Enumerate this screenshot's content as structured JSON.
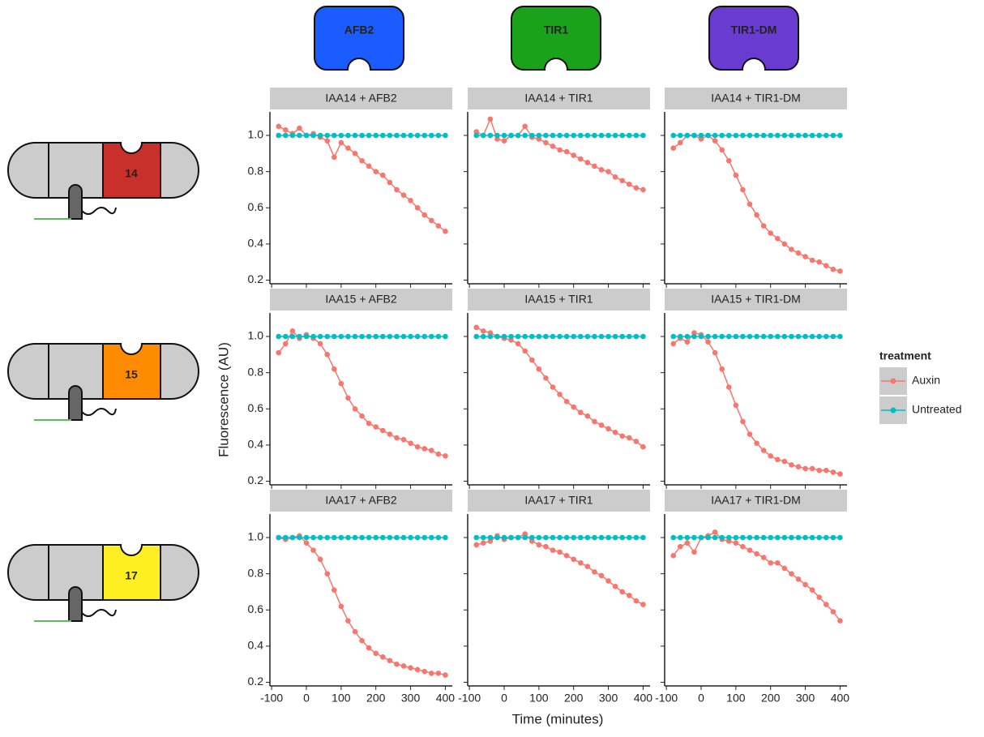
{
  "chart_data": {
    "type": "scatter",
    "xlabel": "Time (minutes)",
    "ylabel": "Fluorescence (AU)",
    "legend_title": "treatment",
    "legend": "right",
    "x": [
      -80,
      -60,
      -40,
      -20,
      0,
      20,
      40,
      60,
      80,
      100,
      120,
      140,
      160,
      180,
      200,
      220,
      240,
      260,
      280,
      300,
      320,
      340,
      360,
      380,
      400
    ],
    "xlim": [
      -105,
      420
    ],
    "xticks": [
      -100,
      0,
      100,
      200,
      300,
      400
    ],
    "ylim": [
      0.18,
      1.13
    ],
    "yticks": [
      0.2,
      0.4,
      0.6,
      0.8,
      {
        "value": 1,
        "label": "1.0"
      }
    ],
    "series": [
      {
        "name": "Auxin",
        "color": "#f8766d"
      },
      {
        "name": "Untreated",
        "color": "#00bfc4"
      }
    ],
    "panels": [
      {
        "title": "IAA14 + AFB2",
        "series": [
          {
            "values": [
              1.05,
              1.03,
              1.01,
              1.04,
              1.0,
              1.01,
              0.99,
              0.97,
              0.88,
              0.96,
              0.93,
              0.9,
              0.86,
              0.83,
              0.8,
              0.78,
              0.74,
              0.7,
              0.67,
              0.64,
              0.6,
              0.56,
              0.53,
              0.5,
              0.47
            ]
          },
          {
            "values": [
              1,
              1,
              1,
              1,
              1,
              1,
              1,
              1,
              1,
              1,
              1,
              1,
              1,
              1,
              1,
              1,
              1,
              1,
              1,
              1,
              1,
              1,
              1,
              1,
              1
            ]
          }
        ]
      },
      {
        "title": "IAA14 + TIR1",
        "series": [
          {
            "values": [
              1.02,
              1.0,
              1.09,
              0.98,
              0.97,
              1.0,
              1.0,
              1.05,
              0.99,
              0.98,
              0.96,
              0.94,
              0.92,
              0.91,
              0.89,
              0.87,
              0.85,
              0.83,
              0.81,
              0.8,
              0.77,
              0.75,
              0.73,
              0.71,
              0.7
            ]
          },
          {
            "values": [
              1,
              1,
              1,
              1,
              1,
              1,
              1,
              1,
              1,
              1,
              1,
              1,
              1,
              1,
              1,
              1,
              1,
              1,
              1,
              1,
              1,
              1,
              1,
              1,
              1
            ]
          }
        ]
      },
      {
        "title": "IAA14 + TIR1-DM",
        "series": [
          {
            "values": [
              0.93,
              0.96,
              1.0,
              1.0,
              0.98,
              1.0,
              0.97,
              0.92,
              0.86,
              0.78,
              0.7,
              0.62,
              0.56,
              0.5,
              0.46,
              0.43,
              0.4,
              0.37,
              0.35,
              0.33,
              0.31,
              0.3,
              0.28,
              0.26,
              0.25
            ]
          },
          {
            "values": [
              1,
              1,
              1,
              1,
              1,
              1,
              1,
              1,
              1,
              1,
              1,
              1,
              1,
              1,
              1,
              1,
              1,
              1,
              1,
              1,
              1,
              1,
              1,
              1,
              1
            ]
          }
        ]
      },
      {
        "title": "IAA15 + AFB2",
        "series": [
          {
            "values": [
              0.91,
              0.96,
              1.03,
              0.99,
              1.01,
              0.99,
              0.96,
              0.9,
              0.82,
              0.74,
              0.66,
              0.6,
              0.56,
              0.52,
              0.5,
              0.48,
              0.46,
              0.44,
              0.43,
              0.41,
              0.39,
              0.38,
              0.37,
              0.35,
              0.34
            ]
          },
          {
            "values": [
              1,
              1,
              1,
              1,
              1,
              1,
              1,
              1,
              1,
              1,
              1,
              1,
              1,
              1,
              1,
              1,
              1,
              1,
              1,
              1,
              1,
              1,
              1,
              1,
              1
            ]
          }
        ]
      },
      {
        "title": "IAA15 + TIR1",
        "series": [
          {
            "values": [
              1.05,
              1.03,
              1.02,
              1.0,
              0.99,
              0.98,
              0.96,
              0.92,
              0.87,
              0.82,
              0.77,
              0.72,
              0.68,
              0.64,
              0.61,
              0.58,
              0.56,
              0.53,
              0.51,
              0.49,
              0.47,
              0.45,
              0.44,
              0.42,
              0.39
            ]
          },
          {
            "values": [
              1,
              1,
              1,
              1,
              1,
              1,
              1,
              1,
              1,
              1,
              1,
              1,
              1,
              1,
              1,
              1,
              1,
              1,
              1,
              1,
              1,
              1,
              1,
              1,
              1
            ]
          }
        ]
      },
      {
        "title": "IAA15 + TIR1-DM",
        "series": [
          {
            "values": [
              0.96,
              0.99,
              0.97,
              1.02,
              1.01,
              0.97,
              0.91,
              0.82,
              0.72,
              0.62,
              0.53,
              0.46,
              0.41,
              0.37,
              0.34,
              0.32,
              0.31,
              0.29,
              0.28,
              0.27,
              0.27,
              0.26,
              0.26,
              0.25,
              0.24
            ]
          },
          {
            "values": [
              1,
              1,
              1,
              1,
              1,
              1,
              1,
              1,
              1,
              1,
              1,
              1,
              1,
              1,
              1,
              1,
              1,
              1,
              1,
              1,
              1,
              1,
              1,
              1,
              1
            ]
          }
        ]
      },
      {
        "title": "IAA17 + AFB2",
        "series": [
          {
            "values": [
              1.0,
              0.99,
              1.0,
              1.01,
              0.97,
              0.93,
              0.88,
              0.8,
              0.71,
              0.62,
              0.54,
              0.48,
              0.43,
              0.39,
              0.36,
              0.34,
              0.32,
              0.3,
              0.29,
              0.28,
              0.27,
              0.26,
              0.25,
              0.25,
              0.24
            ]
          },
          {
            "values": [
              1,
              1,
              1,
              1,
              1,
              1,
              1,
              1,
              1,
              1,
              1,
              1,
              1,
              1,
              1,
              1,
              1,
              1,
              1,
              1,
              1,
              1,
              1,
              1,
              1
            ]
          }
        ]
      },
      {
        "title": "IAA17 + TIR1",
        "series": [
          {
            "values": [
              0.96,
              0.97,
              0.98,
              1.01,
              0.99,
              1.0,
              1.0,
              1.02,
              0.98,
              0.96,
              0.95,
              0.93,
              0.92,
              0.9,
              0.88,
              0.86,
              0.84,
              0.81,
              0.79,
              0.76,
              0.73,
              0.7,
              0.68,
              0.65,
              0.63
            ]
          },
          {
            "values": [
              1,
              1,
              1,
              1,
              1,
              1,
              1,
              1,
              1,
              1,
              1,
              1,
              1,
              1,
              1,
              1,
              1,
              1,
              1,
              1,
              1,
              1,
              1,
              1,
              1
            ]
          }
        ]
      },
      {
        "title": "IAA17 + TIR1-DM",
        "series": [
          {
            "values": [
              0.9,
              0.95,
              0.97,
              0.92,
              1.0,
              1.01,
              1.03,
              0.99,
              0.98,
              0.97,
              0.95,
              0.93,
              0.91,
              0.89,
              0.86,
              0.86,
              0.83,
              0.8,
              0.77,
              0.74,
              0.71,
              0.67,
              0.63,
              0.59,
              0.54
            ]
          },
          {
            "values": [
              1,
              1,
              1,
              1,
              1,
              1,
              1,
              1,
              1,
              1,
              1,
              1,
              1,
              1,
              1,
              1,
              1,
              1,
              1,
              1,
              1,
              1,
              1,
              1,
              1
            ]
          }
        ]
      }
    ]
  },
  "receptors": [
    {
      "label": "AFB2",
      "color": "#1a5cff"
    },
    {
      "label": "TIR1",
      "color": "#1aa31a"
    },
    {
      "label": "TIR1-DM",
      "color": "#6a3bd1"
    }
  ],
  "substrates": [
    {
      "label": "14",
      "color": "#c9302c"
    },
    {
      "label": "15",
      "color": "#ff8c00"
    },
    {
      "label": "17",
      "color": "#ffee22"
    }
  ]
}
